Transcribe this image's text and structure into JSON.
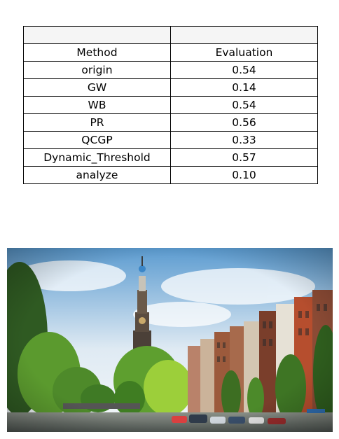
{
  "chart_data": {
    "type": "table",
    "header_row": [
      "",
      ""
    ],
    "columns": [
      "Method",
      "Evaluation"
    ],
    "rows": [
      {
        "method": "origin",
        "evaluation": "0.54"
      },
      {
        "method": "GW",
        "evaluation": "0.14"
      },
      {
        "method": "WB",
        "evaluation": "0.54"
      },
      {
        "method": "PR",
        "evaluation": "0.56"
      },
      {
        "method": "QCGP",
        "evaluation": "0.33"
      },
      {
        "method": "Dynamic_Threshold",
        "evaluation": "0.57"
      },
      {
        "method": "analyze",
        "evaluation": "0.10"
      }
    ]
  },
  "photo": {
    "subject": "canal-city-scene",
    "colors": {
      "sky_top": "#4a90c8",
      "sky_bottom": "#eef4f8",
      "foliage": "#6aa636",
      "tower": "#4b4038",
      "brick": "#9c5a3c",
      "water": "#6d7470"
    }
  }
}
